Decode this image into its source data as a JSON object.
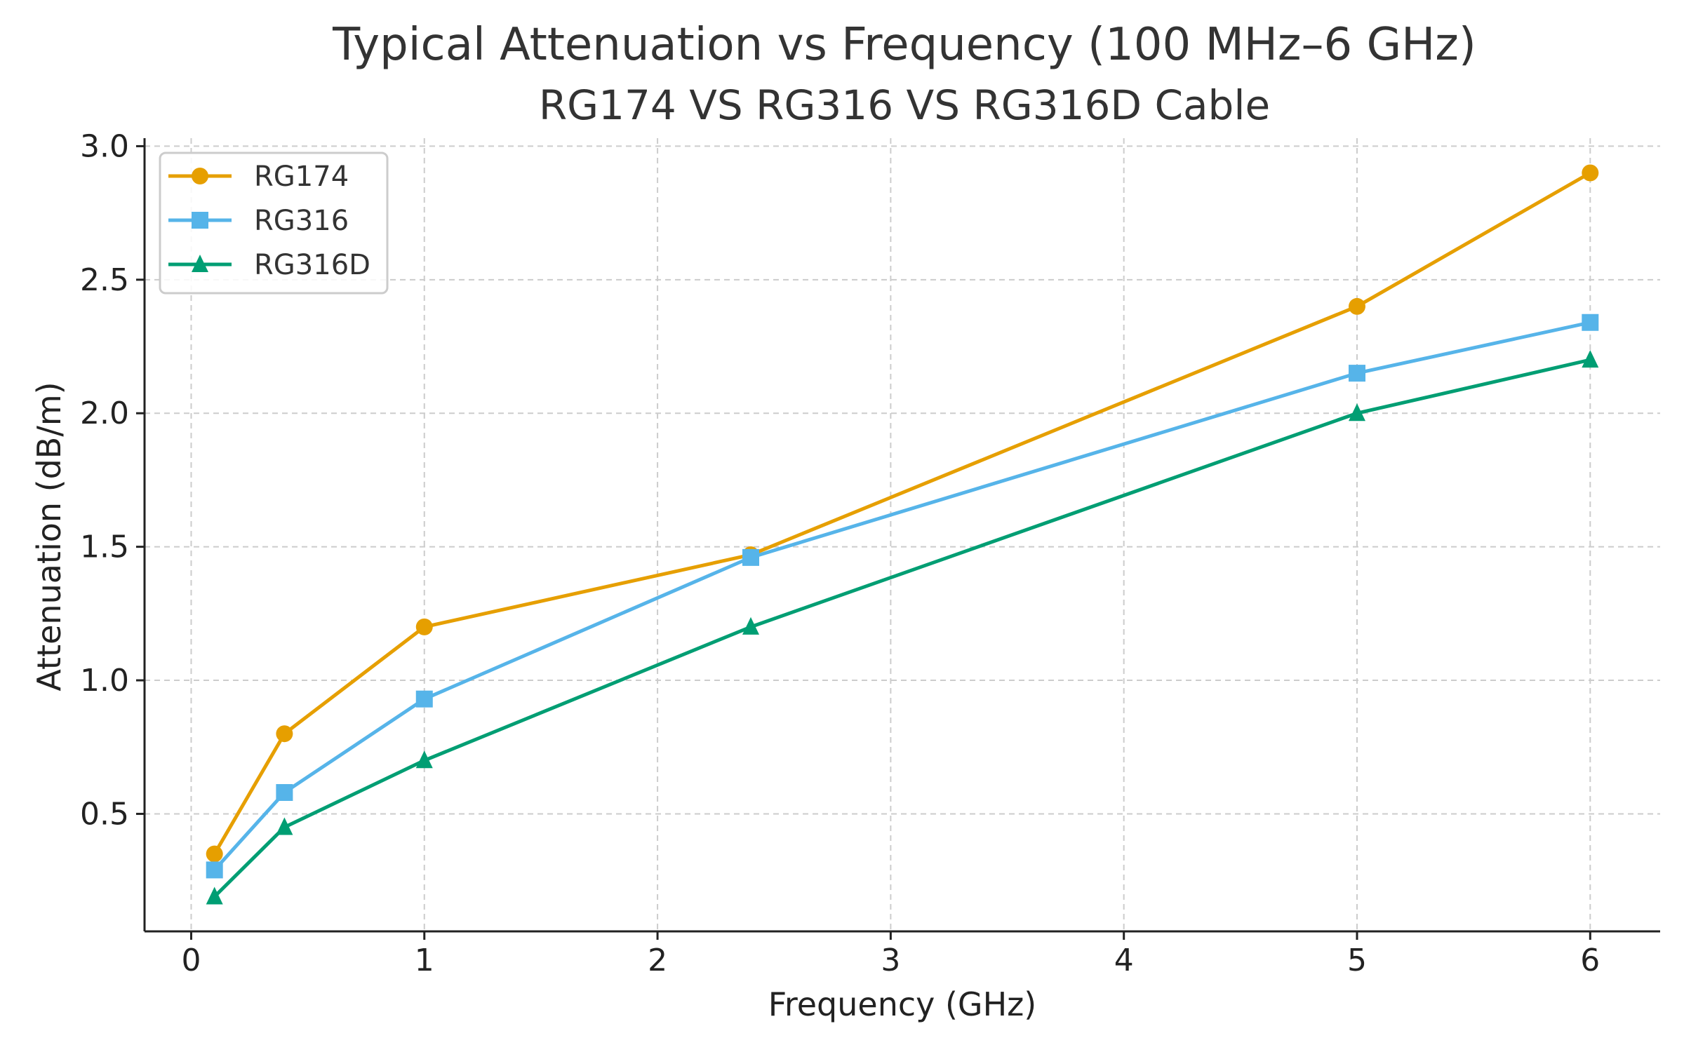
{
  "chart_data": {
    "type": "line",
    "title": "Typical Attenuation vs Frequency (100 MHz–6 GHz)",
    "subtitle": "RG174 VS RG316 VS RG316D Cable",
    "xlabel": "Frequency (GHz)",
    "ylabel": "Attenuation (dB/m)",
    "xlim": [
      -0.2,
      6.3
    ],
    "ylim": [
      0.06,
      3.03
    ],
    "xticks": [
      0,
      1,
      2,
      3,
      4,
      5,
      6
    ],
    "yticks": [
      "0.5",
      "1.0",
      "1.5",
      "2.0",
      "2.5",
      "3.0"
    ],
    "grid": true,
    "legend_position": "top-left",
    "x": [
      0.1,
      0.4,
      1,
      2.4,
      5,
      6
    ],
    "series": [
      {
        "name": "RG174",
        "color": "#E69F00",
        "marker": "circle",
        "values": [
          0.35,
          0.8,
          1.2,
          1.47,
          2.4,
          2.9
        ]
      },
      {
        "name": "RG316",
        "color": "#56B4E9",
        "marker": "square",
        "values": [
          0.29,
          0.58,
          0.93,
          1.46,
          2.15,
          2.34
        ]
      },
      {
        "name": "RG316D",
        "color": "#009E73",
        "marker": "triangle",
        "values": [
          0.19,
          0.45,
          0.7,
          1.2,
          2.0,
          2.2
        ]
      }
    ]
  }
}
